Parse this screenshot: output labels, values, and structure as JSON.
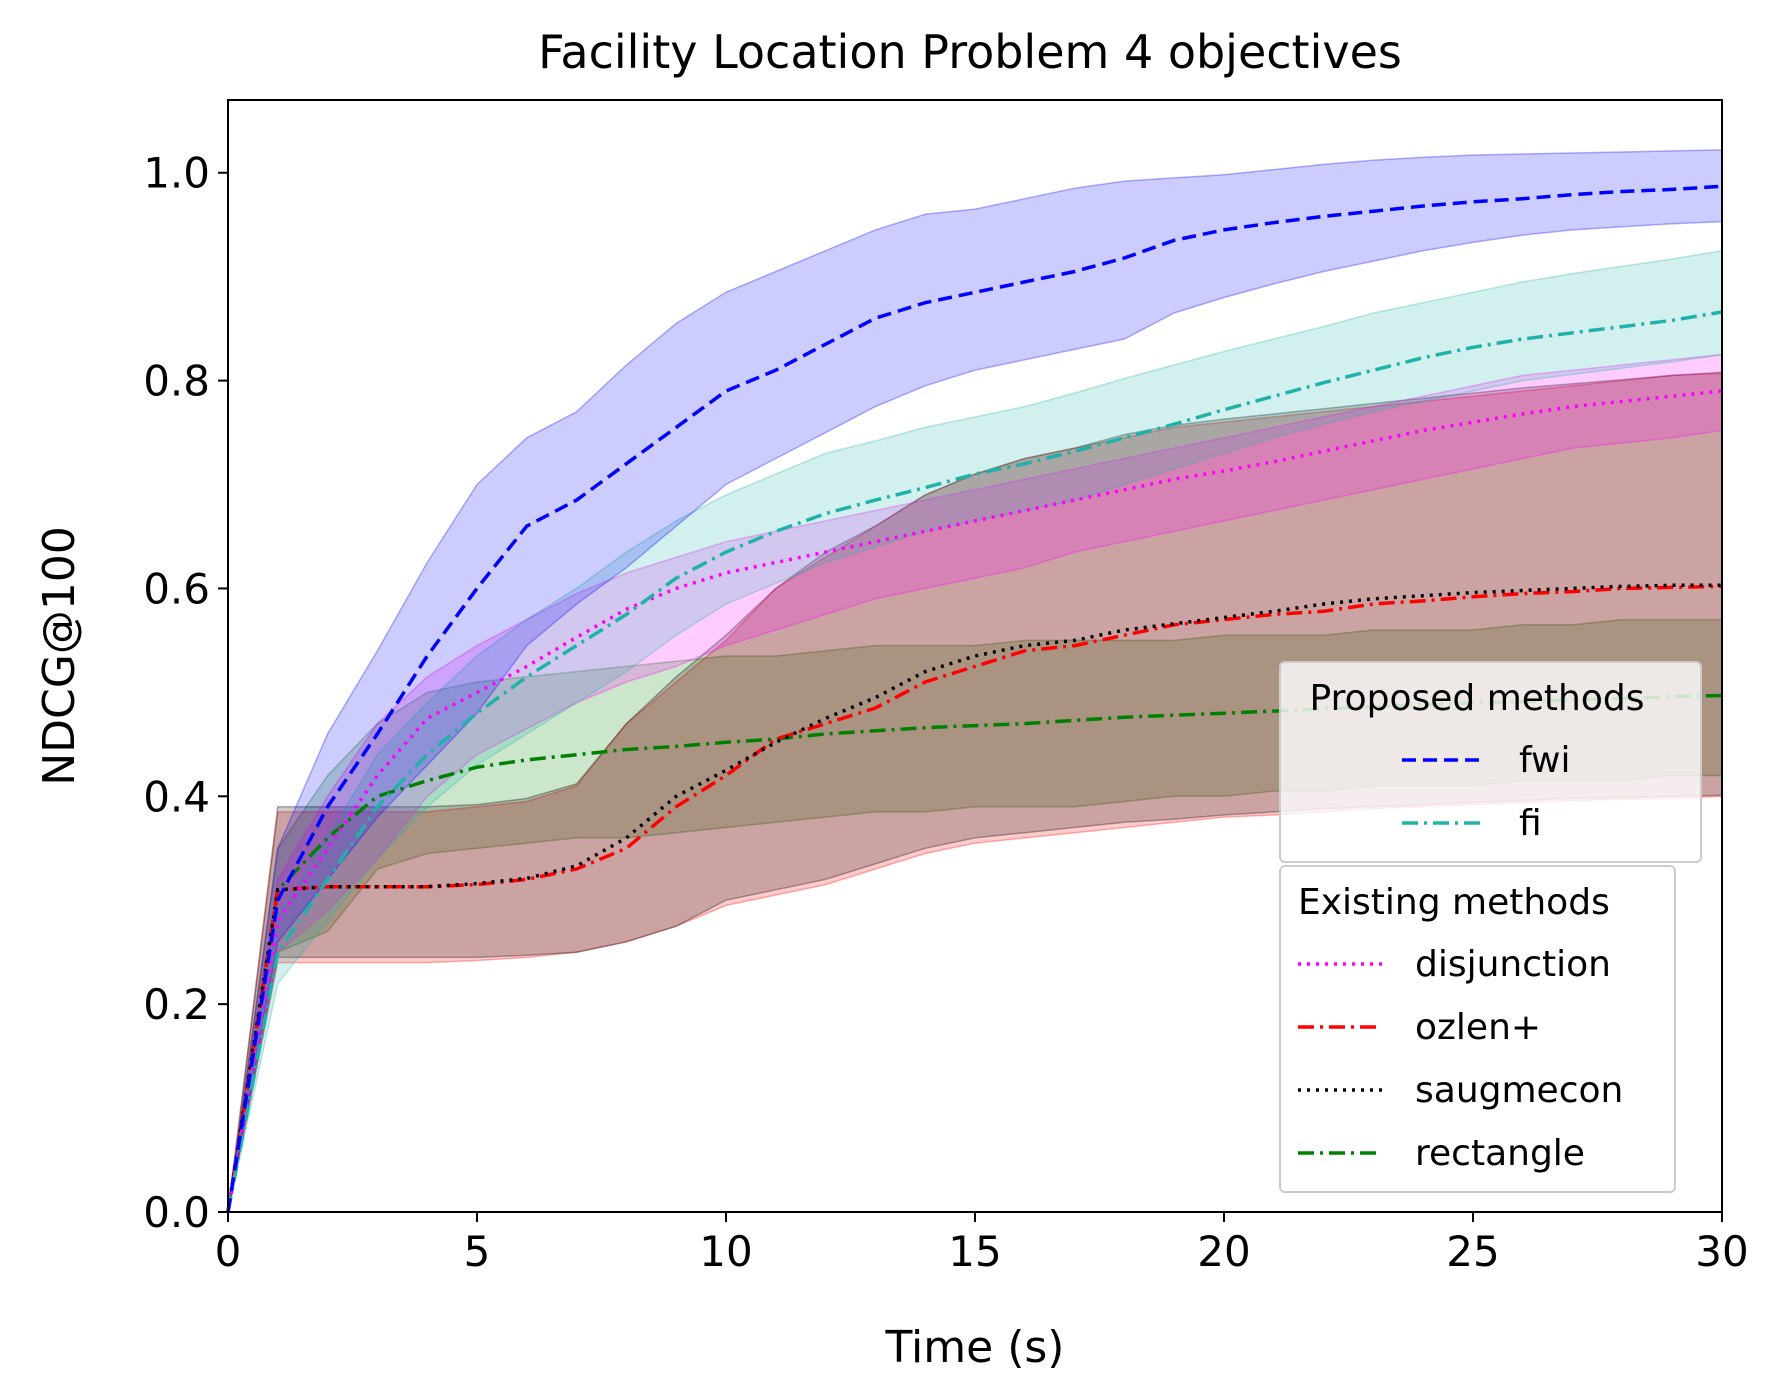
{
  "chart_data": {
    "type": "line",
    "title": "Facility Location Problem 4 objectives",
    "xlabel": "Time (s)",
    "ylabel": "NDCG@100",
    "xlim": [
      0,
      30
    ],
    "ylim": [
      0,
      1.07
    ],
    "xticks": [
      0,
      5,
      10,
      15,
      20,
      25,
      30
    ],
    "xtick_labels": [
      "0",
      "5",
      "10",
      "15",
      "20",
      "25",
      "30"
    ],
    "yticks": [
      0.0,
      0.2,
      0.4,
      0.6,
      0.8,
      1.0
    ],
    "ytick_labels": [
      "0.0",
      "0.2",
      "0.4",
      "0.6",
      "0.8",
      "1.0"
    ],
    "grid": false,
    "legend_placement": "lower right",
    "legend_groups": [
      {
        "title": "Proposed methods",
        "entries": [
          "fwi",
          "fi"
        ]
      },
      {
        "title": "Existing methods",
        "entries": [
          "disjunction",
          "ozlen+",
          "saugmecon",
          "rectangle"
        ]
      }
    ],
    "x": [
      0,
      1,
      2,
      3,
      4,
      5,
      6,
      7,
      8,
      9,
      10,
      11,
      12,
      13,
      14,
      15,
      16,
      17,
      18,
      19,
      20,
      21,
      22,
      23,
      24,
      25,
      26,
      27,
      28,
      29,
      30
    ],
    "series": [
      {
        "name": "rectangle",
        "color": "#008000",
        "dash": "dashdot",
        "values": [
          0.0,
          0.31,
          0.36,
          0.4,
          0.415,
          0.428,
          0.435,
          0.44,
          0.445,
          0.448,
          0.452,
          0.455,
          0.46,
          0.463,
          0.466,
          0.468,
          0.47,
          0.473,
          0.476,
          0.478,
          0.48,
          0.482,
          0.484,
          0.486,
          0.488,
          0.49,
          0.491,
          0.493,
          0.494,
          0.496,
          0.497
        ],
        "lower": [
          0.0,
          0.25,
          0.27,
          0.33,
          0.345,
          0.35,
          0.355,
          0.36,
          0.36,
          0.365,
          0.37,
          0.375,
          0.38,
          0.385,
          0.385,
          0.39,
          0.39,
          0.39,
          0.395,
          0.4,
          0.4,
          0.405,
          0.405,
          0.41,
          0.41,
          0.41,
          0.415,
          0.415,
          0.415,
          0.42,
          0.42
        ],
        "upper": [
          0.0,
          0.35,
          0.42,
          0.47,
          0.5,
          0.51,
          0.515,
          0.52,
          0.525,
          0.53,
          0.535,
          0.535,
          0.54,
          0.545,
          0.545,
          0.545,
          0.55,
          0.55,
          0.55,
          0.55,
          0.555,
          0.555,
          0.555,
          0.56,
          0.56,
          0.56,
          0.565,
          0.565,
          0.57,
          0.57,
          0.57
        ]
      },
      {
        "name": "ozlen+",
        "color": "#ff0000",
        "dash": "dashdot",
        "values": [
          0.0,
          0.31,
          0.313,
          0.313,
          0.313,
          0.315,
          0.32,
          0.33,
          0.35,
          0.39,
          0.42,
          0.455,
          0.47,
          0.485,
          0.51,
          0.525,
          0.54,
          0.545,
          0.555,
          0.565,
          0.57,
          0.575,
          0.578,
          0.585,
          0.588,
          0.592,
          0.595,
          0.597,
          0.6,
          0.601,
          0.602
        ],
        "lower": [
          0.0,
          0.24,
          0.24,
          0.24,
          0.24,
          0.242,
          0.245,
          0.25,
          0.26,
          0.275,
          0.295,
          0.305,
          0.315,
          0.33,
          0.345,
          0.355,
          0.36,
          0.365,
          0.37,
          0.375,
          0.38,
          0.382,
          0.385,
          0.388,
          0.39,
          0.392,
          0.394,
          0.396,
          0.397,
          0.398,
          0.4
        ],
        "upper": [
          0.0,
          0.385,
          0.385,
          0.385,
          0.385,
          0.39,
          0.395,
          0.41,
          0.47,
          0.51,
          0.55,
          0.6,
          0.63,
          0.66,
          0.69,
          0.71,
          0.725,
          0.735,
          0.745,
          0.755,
          0.76,
          0.765,
          0.77,
          0.775,
          0.78,
          0.785,
          0.79,
          0.795,
          0.8,
          0.805,
          0.807
        ]
      },
      {
        "name": "saugmecon",
        "color": "#000000",
        "dash": "dotted",
        "values": [
          0.0,
          0.31,
          0.313,
          0.313,
          0.313,
          0.316,
          0.321,
          0.333,
          0.36,
          0.4,
          0.425,
          0.452,
          0.475,
          0.495,
          0.52,
          0.535,
          0.545,
          0.55,
          0.56,
          0.566,
          0.572,
          0.578,
          0.585,
          0.59,
          0.593,
          0.596,
          0.598,
          0.6,
          0.602,
          0.603,
          0.603
        ],
        "lower": [
          0.0,
          0.245,
          0.245,
          0.245,
          0.245,
          0.245,
          0.247,
          0.25,
          0.26,
          0.275,
          0.3,
          0.31,
          0.32,
          0.335,
          0.35,
          0.36,
          0.365,
          0.37,
          0.375,
          0.378,
          0.382,
          0.385,
          0.388,
          0.39,
          0.392,
          0.394,
          0.396,
          0.398,
          0.399,
          0.4,
          0.401
        ],
        "upper": [
          0.0,
          0.39,
          0.39,
          0.39,
          0.39,
          0.392,
          0.398,
          0.412,
          0.47,
          0.515,
          0.555,
          0.6,
          0.635,
          0.66,
          0.69,
          0.71,
          0.725,
          0.735,
          0.748,
          0.757,
          0.763,
          0.768,
          0.773,
          0.778,
          0.783,
          0.788,
          0.793,
          0.797,
          0.801,
          0.805,
          0.808
        ]
      },
      {
        "name": "disjunction",
        "color": "#ff00ff",
        "dash": "dotted",
        "values": [
          0.0,
          0.28,
          0.35,
          0.42,
          0.475,
          0.5,
          0.525,
          0.553,
          0.58,
          0.6,
          0.615,
          0.625,
          0.635,
          0.645,
          0.655,
          0.665,
          0.675,
          0.685,
          0.695,
          0.705,
          0.713,
          0.722,
          0.732,
          0.742,
          0.752,
          0.76,
          0.768,
          0.775,
          0.78,
          0.785,
          0.79
        ],
        "lower": [
          0.0,
          0.25,
          0.29,
          0.34,
          0.4,
          0.44,
          0.465,
          0.49,
          0.51,
          0.525,
          0.545,
          0.56,
          0.575,
          0.59,
          0.6,
          0.61,
          0.62,
          0.635,
          0.645,
          0.655,
          0.665,
          0.675,
          0.685,
          0.695,
          0.705,
          0.715,
          0.725,
          0.735,
          0.74,
          0.745,
          0.752
        ],
        "upper": [
          0.0,
          0.32,
          0.4,
          0.47,
          0.515,
          0.545,
          0.57,
          0.595,
          0.615,
          0.63,
          0.645,
          0.655,
          0.665,
          0.675,
          0.685,
          0.695,
          0.705,
          0.715,
          0.725,
          0.735,
          0.745,
          0.755,
          0.765,
          0.775,
          0.785,
          0.795,
          0.805,
          0.81,
          0.815,
          0.82,
          0.825
        ]
      },
      {
        "name": "fi",
        "color": "#20b2aa",
        "dash": "dashdot",
        "values": [
          0.0,
          0.25,
          0.32,
          0.39,
          0.44,
          0.48,
          0.515,
          0.545,
          0.575,
          0.61,
          0.635,
          0.655,
          0.672,
          0.685,
          0.697,
          0.71,
          0.72,
          0.732,
          0.745,
          0.758,
          0.772,
          0.785,
          0.798,
          0.81,
          0.822,
          0.832,
          0.84,
          0.846,
          0.852,
          0.858,
          0.866
        ],
        "lower": [
          0.0,
          0.22,
          0.28,
          0.34,
          0.39,
          0.43,
          0.46,
          0.49,
          0.52,
          0.555,
          0.585,
          0.605,
          0.625,
          0.64,
          0.655,
          0.665,
          0.675,
          0.685,
          0.7,
          0.715,
          0.73,
          0.745,
          0.758,
          0.77,
          0.78,
          0.79,
          0.8,
          0.806,
          0.812,
          0.818,
          0.825
        ],
        "upper": [
          0.0,
          0.285,
          0.36,
          0.44,
          0.49,
          0.535,
          0.57,
          0.6,
          0.635,
          0.665,
          0.69,
          0.71,
          0.73,
          0.742,
          0.755,
          0.765,
          0.775,
          0.788,
          0.802,
          0.815,
          0.828,
          0.84,
          0.852,
          0.865,
          0.875,
          0.885,
          0.895,
          0.903,
          0.91,
          0.917,
          0.925
        ]
      },
      {
        "name": "fwi",
        "color": "#0000ff",
        "dash": "dashed",
        "values": [
          0.0,
          0.3,
          0.39,
          0.46,
          0.535,
          0.6,
          0.66,
          0.685,
          0.72,
          0.755,
          0.79,
          0.81,
          0.835,
          0.86,
          0.875,
          0.885,
          0.895,
          0.905,
          0.918,
          0.935,
          0.945,
          0.952,
          0.958,
          0.963,
          0.968,
          0.972,
          0.975,
          0.979,
          0.982,
          0.984,
          0.987
        ],
        "lower": [
          0.0,
          0.26,
          0.32,
          0.38,
          0.43,
          0.48,
          0.545,
          0.585,
          0.62,
          0.66,
          0.7,
          0.725,
          0.75,
          0.775,
          0.795,
          0.81,
          0.82,
          0.83,
          0.84,
          0.865,
          0.88,
          0.893,
          0.905,
          0.915,
          0.925,
          0.933,
          0.94,
          0.945,
          0.948,
          0.951,
          0.953
        ],
        "upper": [
          0.0,
          0.35,
          0.46,
          0.54,
          0.625,
          0.7,
          0.745,
          0.77,
          0.815,
          0.855,
          0.885,
          0.905,
          0.925,
          0.945,
          0.96,
          0.965,
          0.975,
          0.985,
          0.992,
          0.995,
          0.998,
          1.003,
          1.008,
          1.012,
          1.015,
          1.017,
          1.018,
          1.019,
          1.02,
          1.021,
          1.022
        ]
      }
    ]
  }
}
